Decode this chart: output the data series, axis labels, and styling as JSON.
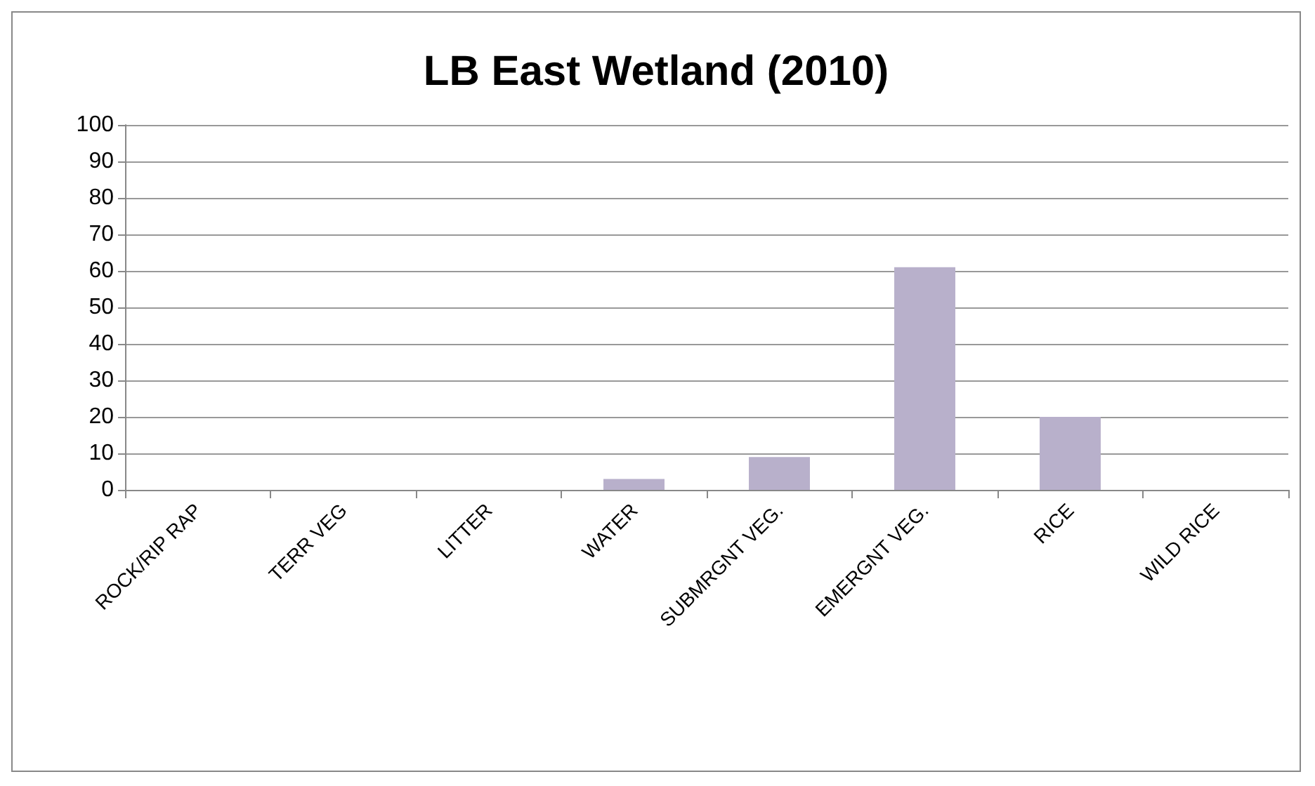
{
  "chart_data": {
    "type": "bar",
    "title": "LB East Wetland (2010)",
    "categories": [
      "ROCK/RIP RAP",
      "TERR VEG",
      "LITTER",
      "WATER",
      "SUBMRGNT VEG.",
      "EMERGNT VEG.",
      "RICE",
      "WILD RICE"
    ],
    "values": [
      0,
      0,
      0,
      3,
      9,
      61,
      20,
      0
    ],
    "color": "#b8b0cb",
    "ylim": [
      0,
      100
    ],
    "yticks": [
      0,
      10,
      20,
      30,
      40,
      50,
      60,
      70,
      80,
      90,
      100
    ],
    "grid": "y"
  }
}
